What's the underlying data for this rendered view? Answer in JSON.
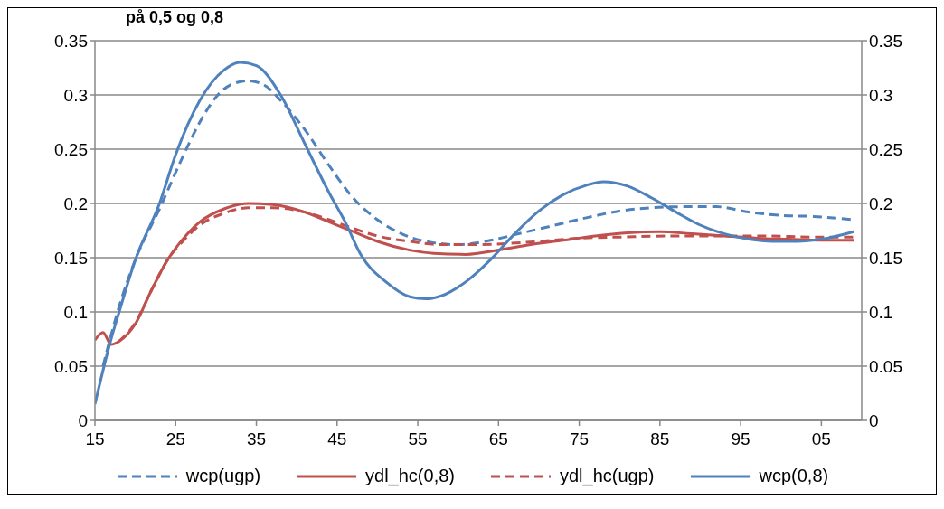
{
  "chart_data": {
    "type": "line",
    "title": "på 0,5 og 0,8",
    "xlim": [
      1915,
      2010
    ],
    "xticks": [
      {
        "value": 1915,
        "label": "15"
      },
      {
        "value": 1925,
        "label": "25"
      },
      {
        "value": 1935,
        "label": "35"
      },
      {
        "value": 1945,
        "label": "45"
      },
      {
        "value": 1955,
        "label": "55"
      },
      {
        "value": 1965,
        "label": "65"
      },
      {
        "value": 1975,
        "label": "75"
      },
      {
        "value": 1985,
        "label": "85"
      },
      {
        "value": 1995,
        "label": "95"
      },
      {
        "value": 2005,
        "label": "05"
      }
    ],
    "ylim": [
      0,
      0.35
    ],
    "yticks": [
      0,
      0.05,
      0.1,
      0.15,
      0.2,
      0.25,
      0.3,
      0.35
    ],
    "y2lim": [
      0,
      0.35
    ],
    "y2ticks": [
      0,
      0.05,
      0.1,
      0.15,
      0.2,
      0.25,
      0.3,
      0.35
    ],
    "grid": "y",
    "legend": "bottom",
    "marker": "none",
    "series": [
      {
        "name": "wcp(ugp)",
        "color": "#4f81bd",
        "line_style": "dashed",
        "x": [
          1916,
          1918,
          1920,
          1923,
          1926,
          1928,
          1930,
          1932,
          1934,
          1936,
          1938,
          1941,
          1944,
          1947,
          1950,
          1953,
          1956,
          1960,
          1964,
          1968,
          1972,
          1976,
          1980,
          1984,
          1988,
          1992,
          1996,
          2000,
          2004,
          2009
        ],
        "values": [
          0.05,
          0.105,
          0.148,
          0.195,
          0.245,
          0.275,
          0.298,
          0.31,
          0.313,
          0.309,
          0.295,
          0.268,
          0.235,
          0.205,
          0.185,
          0.172,
          0.165,
          0.162,
          0.166,
          0.173,
          0.18,
          0.187,
          0.193,
          0.196,
          0.197,
          0.197,
          0.192,
          0.189,
          0.188,
          0.185
        ]
      },
      {
        "name": "ydl_hc(0,8)",
        "color": "#c0504d",
        "line_style": "solid",
        "x": [
          1915,
          1916,
          1917,
          1918,
          1920,
          1922,
          1924,
          1926,
          1928,
          1931,
          1934,
          1937,
          1941,
          1944,
          1947,
          1950,
          1954,
          1957,
          1961,
          1965,
          1969,
          1973,
          1977,
          1981,
          1985,
          1989,
          1993,
          1997,
          2001,
          2005,
          2009
        ],
        "values": [
          0.074,
          0.081,
          0.07,
          0.073,
          0.089,
          0.12,
          0.148,
          0.168,
          0.183,
          0.195,
          0.2,
          0.199,
          0.192,
          0.183,
          0.174,
          0.165,
          0.157,
          0.154,
          0.153,
          0.157,
          0.162,
          0.166,
          0.17,
          0.173,
          0.174,
          0.172,
          0.17,
          0.168,
          0.167,
          0.166,
          0.166
        ]
      },
      {
        "name": "ydl_hc(ugp)",
        "color": "#c0504d",
        "line_style": "dashed",
        "x": [
          1918,
          1920,
          1922,
          1924,
          1926,
          1928,
          1931,
          1934,
          1937,
          1941,
          1944,
          1947,
          1950,
          1954,
          1958,
          1962,
          1966,
          1970,
          1975,
          1980,
          1986,
          1992,
          1998,
          2004,
          2009
        ],
        "values": [
          0.073,
          0.09,
          0.12,
          0.148,
          0.166,
          0.18,
          0.191,
          0.196,
          0.196,
          0.192,
          0.185,
          0.177,
          0.17,
          0.165,
          0.162,
          0.162,
          0.163,
          0.165,
          0.168,
          0.169,
          0.17,
          0.17,
          0.17,
          0.169,
          0.169
        ]
      },
      {
        "name": "wcp(0,8)",
        "color": "#4f81bd",
        "line_style": "solid",
        "x": [
          1915,
          1917,
          1918,
          1920,
          1923,
          1925,
          1928,
          1931,
          1933,
          1935,
          1938,
          1941,
          1944,
          1946,
          1948,
          1951,
          1954,
          1956,
          1958,
          1961,
          1964,
          1967,
          1970,
          1973,
          1976,
          1978,
          1981,
          1984,
          1987,
          1990,
          1993,
          1996,
          1999,
          2002,
          2005,
          2009
        ],
        "values": [
          0.015,
          0.075,
          0.1,
          0.148,
          0.2,
          0.245,
          0.295,
          0.323,
          0.33,
          0.327,
          0.3,
          0.255,
          0.21,
          0.183,
          0.152,
          0.128,
          0.114,
          0.112,
          0.115,
          0.128,
          0.148,
          0.172,
          0.193,
          0.208,
          0.217,
          0.22,
          0.216,
          0.205,
          0.192,
          0.18,
          0.172,
          0.167,
          0.165,
          0.165,
          0.167,
          0.174
        ]
      }
    ]
  }
}
